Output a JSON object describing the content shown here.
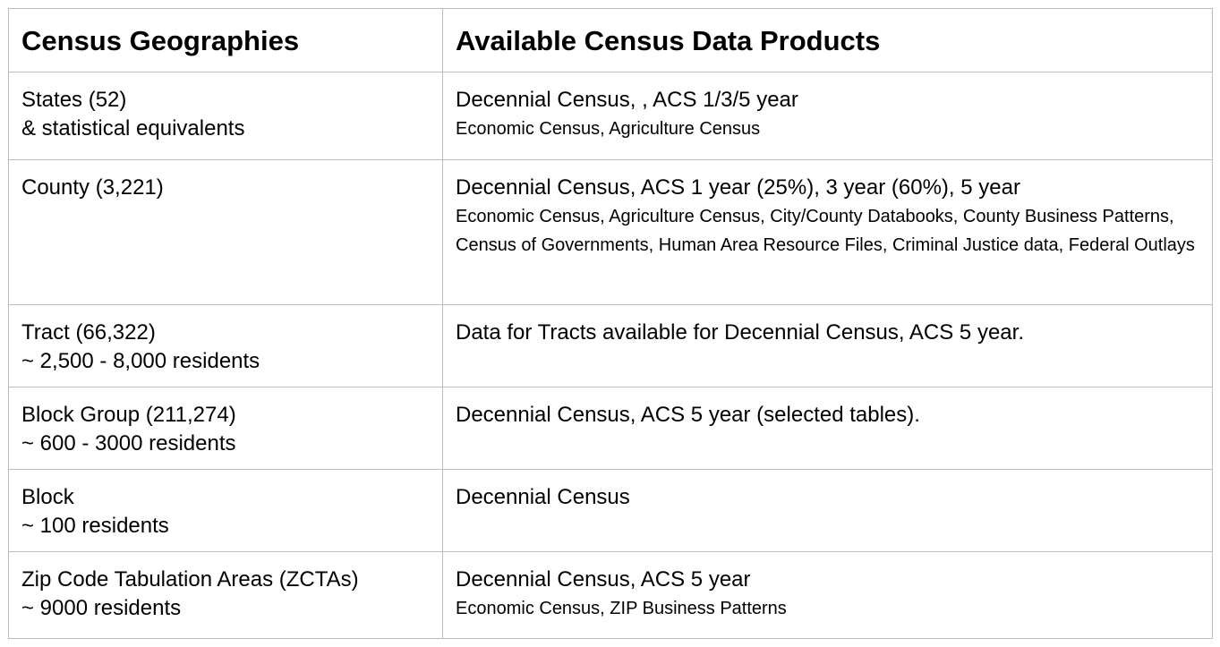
{
  "headers": {
    "geographies": "Census Geographies",
    "products": "Available Census Data Products"
  },
  "rows": [
    {
      "geo": [
        "States (52)",
        "& statistical equivalents"
      ],
      "main": "Decennial Census, , ACS 1/3/5 year",
      "sub": "Economic Census, Agriculture Census"
    },
    {
      "geo": [
        "County (3,221)",
        ""
      ],
      "main": "Decennial Census,  ACS 1 year (25%), 3 year (60%), 5 year",
      "sub": "Economic Census, Agriculture Census, City/County Databooks, County Business Patterns, Census of Governments, Human Area Resource Files, Criminal Justice data, Federal Outlays"
    },
    {
      "geo": [
        "Tract (66,322)",
        "~ 2,500 - 8,000 residents"
      ],
      "main": "Data for Tracts available for Decennial Census, ACS 5 year.",
      "sub": ""
    },
    {
      "geo": [
        "Block Group (211,274)",
        "~ 600 - 3000 residents"
      ],
      "main": "Decennial Census, ACS 5 year (selected tables).",
      "sub": ""
    },
    {
      "geo": [
        "Block",
        "~ 100 residents"
      ],
      "main": "Decennial Census",
      "sub": ""
    },
    {
      "geo": [
        "Zip Code Tabulation Areas (ZCTAs)",
        "~ 9000 residents"
      ],
      "main": "Decennial Census, ACS 5 year",
      "sub": "Economic Census, ZIP Business Patterns"
    }
  ]
}
